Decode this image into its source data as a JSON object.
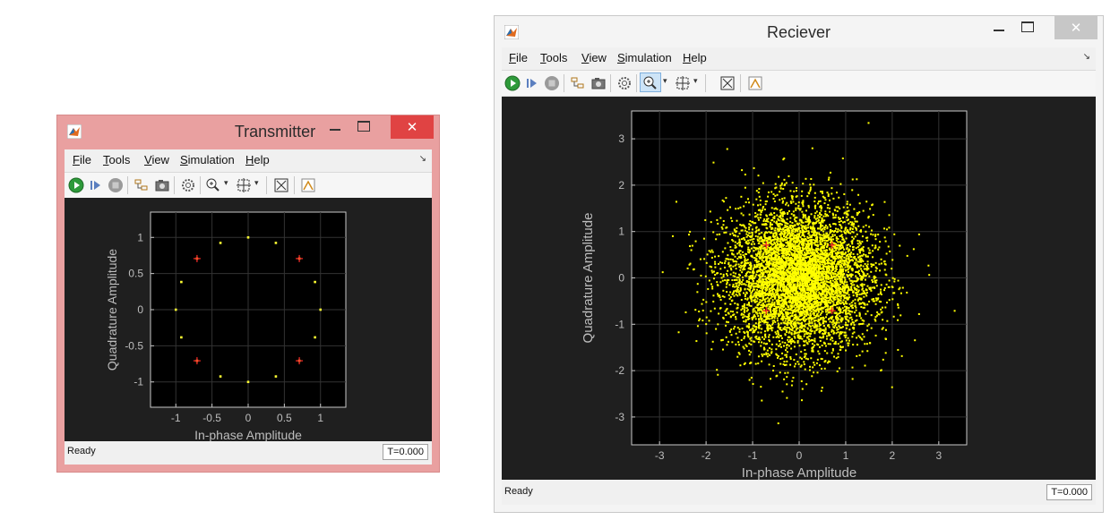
{
  "transmitter": {
    "title": "Transmitter",
    "menu": [
      "File",
      "Tools",
      "View",
      "Simulation",
      "Help"
    ],
    "status": "Ready",
    "time": "T=0.000",
    "chart_data": {
      "type": "scatter",
      "xlabel": "In-phase Amplitude",
      "ylabel": "Quadrature Amplitude",
      "xlim": [
        -1.35,
        1.35
      ],
      "ylim": [
        -1.35,
        1.35
      ],
      "xticks": [
        "-1",
        "-0.5",
        "0",
        "0.5",
        "1"
      ],
      "yticks": [
        "1",
        "0.5",
        "0",
        "-0.5",
        "-1"
      ],
      "grid": true,
      "colors": {
        "points": "#ffff33",
        "reference": "#ff2a2a",
        "axes_bg": "#000000",
        "text": "#bdbdbd"
      },
      "reference_points": [
        [
          0.707,
          0.707
        ],
        [
          -0.707,
          0.707
        ],
        [
          -0.707,
          -0.707
        ],
        [
          0.707,
          -0.707
        ]
      ],
      "points": [
        [
          1.0,
          0.0
        ],
        [
          0.924,
          0.383
        ],
        [
          0.707,
          0.707
        ],
        [
          0.383,
          0.924
        ],
        [
          0.0,
          1.0
        ],
        [
          -0.383,
          0.924
        ],
        [
          -0.707,
          0.707
        ],
        [
          -0.924,
          0.383
        ],
        [
          -1.0,
          0.0
        ],
        [
          -0.924,
          -0.383
        ],
        [
          -0.707,
          -0.707
        ],
        [
          -0.383,
          -0.924
        ],
        [
          0.0,
          -1.0
        ],
        [
          0.383,
          -0.924
        ],
        [
          0.707,
          -0.707
        ],
        [
          0.924,
          -0.383
        ]
      ]
    }
  },
  "receiver": {
    "title": "Reciever",
    "menu": [
      "File",
      "Tools",
      "View",
      "Simulation",
      "Help"
    ],
    "status": "Ready",
    "time": "T=0.000",
    "chart_data": {
      "type": "scatter",
      "xlabel": "In-phase Amplitude",
      "ylabel": "Quadrature Amplitude",
      "xlim": [
        -3.6,
        3.6
      ],
      "ylim": [
        -3.6,
        3.6
      ],
      "xticks": [
        "-3",
        "-2",
        "-1",
        "0",
        "1",
        "2",
        "3"
      ],
      "yticks": [
        "3",
        "2",
        "1",
        "0",
        "-1",
        "-2",
        "-3"
      ],
      "grid": true,
      "colors": {
        "points": "#ffff00",
        "reference": "#ff2a2a",
        "axes_bg": "#000000",
        "text": "#bdbdbd"
      },
      "reference_points": [
        [
          0.707,
          0.707
        ],
        [
          -0.707,
          0.707
        ],
        [
          -0.707,
          -0.707
        ],
        [
          0.707,
          -0.707
        ]
      ],
      "noise_cloud": {
        "center": [
          0,
          0
        ],
        "std": 0.78,
        "count": 6000
      }
    }
  },
  "icons": [
    "matlab-icon",
    "run-icon",
    "step-icon",
    "stop-icon",
    "highlight-icon",
    "snapshot-icon",
    "settings-icon",
    "zoom-icon",
    "autoscale-icon",
    "fit-icon",
    "legend-icon"
  ]
}
